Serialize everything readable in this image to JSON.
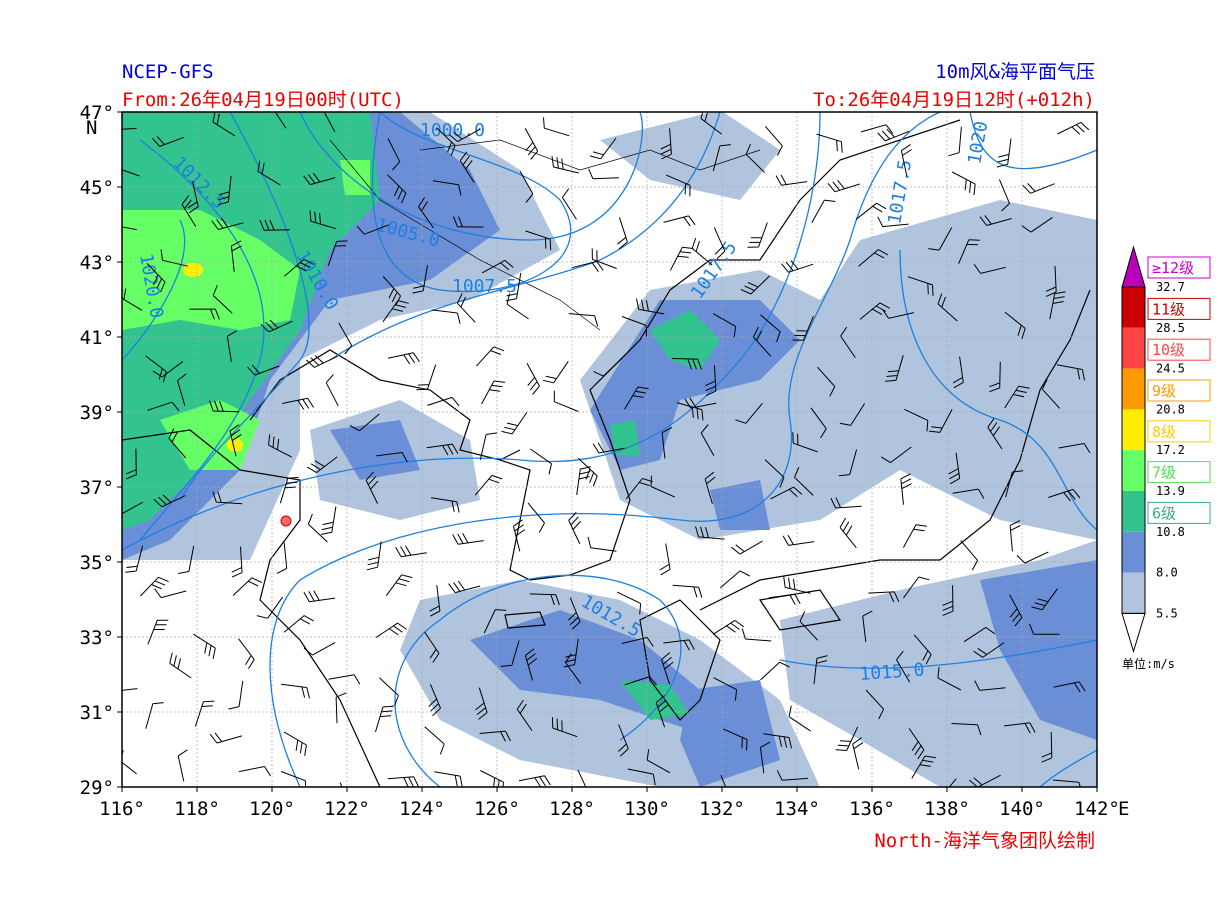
{
  "header": {
    "source": "NCEP-GFS",
    "from": "From:26年04月19日00时(UTC)",
    "product": "10m风&海平面气压",
    "to": "To:26年04月19日12时(+012h)"
  },
  "footer": {
    "credit": "North-海洋气象团队绘制"
  },
  "axes": {
    "lon_labels": [
      "116°",
      "118°",
      "120°",
      "122°",
      "124°",
      "126°",
      "128°",
      "130°",
      "132°",
      "134°",
      "136°",
      "138°",
      "140°",
      "142°"
    ],
    "lon_unit": "E",
    "lat_labels": [
      "29°",
      "31°",
      "33°",
      "35°",
      "37°",
      "39°",
      "41°",
      "43°",
      "45°",
      "47°"
    ],
    "lat_unit": "N"
  },
  "contour_labels": [
    "1000.0",
    "1005.0",
    "1007.5",
    "1010.0",
    "1012.5",
    "1015.0",
    "1017.5",
    "1017.5",
    "1012.5",
    "1020",
    "1020.0"
  ],
  "colorbar": {
    "levels": [
      "≥12级",
      "11级",
      "10级",
      "9级",
      "8级",
      "7级",
      "6级"
    ],
    "boundaries": [
      "32.7",
      "28.5",
      "24.5",
      "20.8",
      "17.2",
      "13.9",
      "10.8",
      "8.0",
      "5.5"
    ],
    "unit": "单位:m/s"
  }
}
